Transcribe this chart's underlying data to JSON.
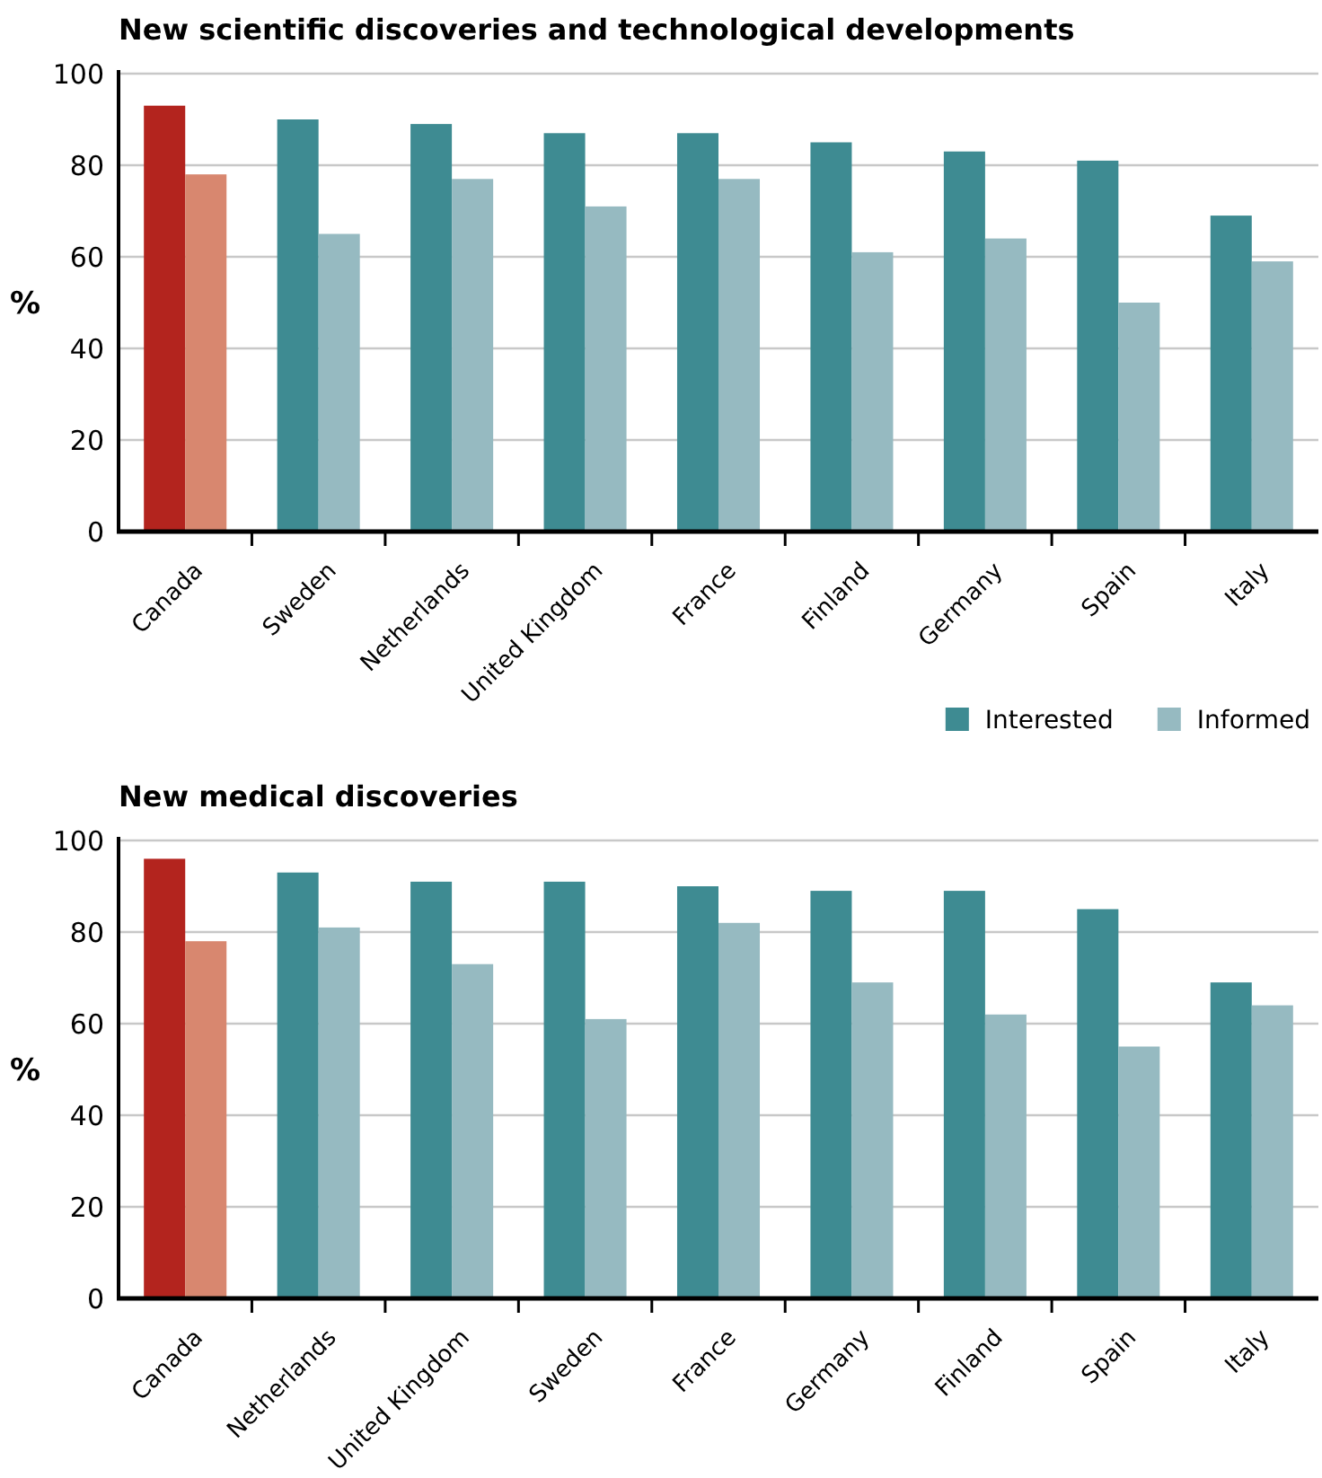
{
  "chart_data": [
    {
      "type": "bar",
      "title": "New scientific discoveries and technological developments",
      "ylabel": "%",
      "categories": [
        "Canada",
        "Sweden",
        "Netherlands",
        "United Kingdom",
        "France",
        "Finland",
        "Germany",
        "Spain",
        "Italy"
      ],
      "series": [
        {
          "colors": [
            "#b3241e",
            "#3e8b92",
            "#3e8b92",
            "#3e8b92",
            "#3e8b92",
            "#3e8b92",
            "#3e8b92",
            "#3e8b92",
            "#3e8b92"
          ],
          "values": [
            93,
            90,
            89,
            87,
            87,
            85,
            83,
            81,
            69
          ]
        },
        {
          "colors": [
            "#d8876f",
            "#96bac1",
            "#96bac1",
            "#96bac1",
            "#96bac1",
            "#96bac1",
            "#96bac1",
            "#96bac1",
            "#96bac1"
          ],
          "values": [
            78,
            65,
            77,
            71,
            77,
            61,
            64,
            50,
            59
          ]
        }
      ],
      "ylim": [
        0,
        100
      ],
      "yticks": [
        0,
        20,
        40,
        60,
        80,
        100
      ],
      "grid": "y",
      "legend": false
    },
    {
      "type": "bar",
      "title": "New medical discoveries",
      "ylabel": "%",
      "categories": [
        "Canada",
        "Netherlands",
        "United Kingdom",
        "Sweden",
        "France",
        "Germany",
        "Finland",
        "Spain",
        "Italy"
      ],
      "series": [
        {
          "name": "Interested",
          "color": "#3e8b92",
          "colors": [
            "#b3241e",
            "#3e8b92",
            "#3e8b92",
            "#3e8b92",
            "#3e8b92",
            "#3e8b92",
            "#3e8b92",
            "#3e8b92",
            "#3e8b92"
          ],
          "values": [
            96,
            93,
            91,
            91,
            90,
            89,
            89,
            85,
            69
          ]
        },
        {
          "name": "Informed",
          "color": "#96bac1",
          "colors": [
            "#d8876f",
            "#96bac1",
            "#96bac1",
            "#96bac1",
            "#96bac1",
            "#96bac1",
            "#96bac1",
            "#96bac1",
            "#96bac1"
          ],
          "values": [
            78,
            81,
            73,
            61,
            82,
            69,
            62,
            55,
            64
          ]
        }
      ],
      "ylim": [
        0,
        100
      ],
      "yticks": [
        0,
        20,
        40,
        60,
        80,
        100
      ],
      "grid": "y",
      "legend": "top right"
    }
  ]
}
